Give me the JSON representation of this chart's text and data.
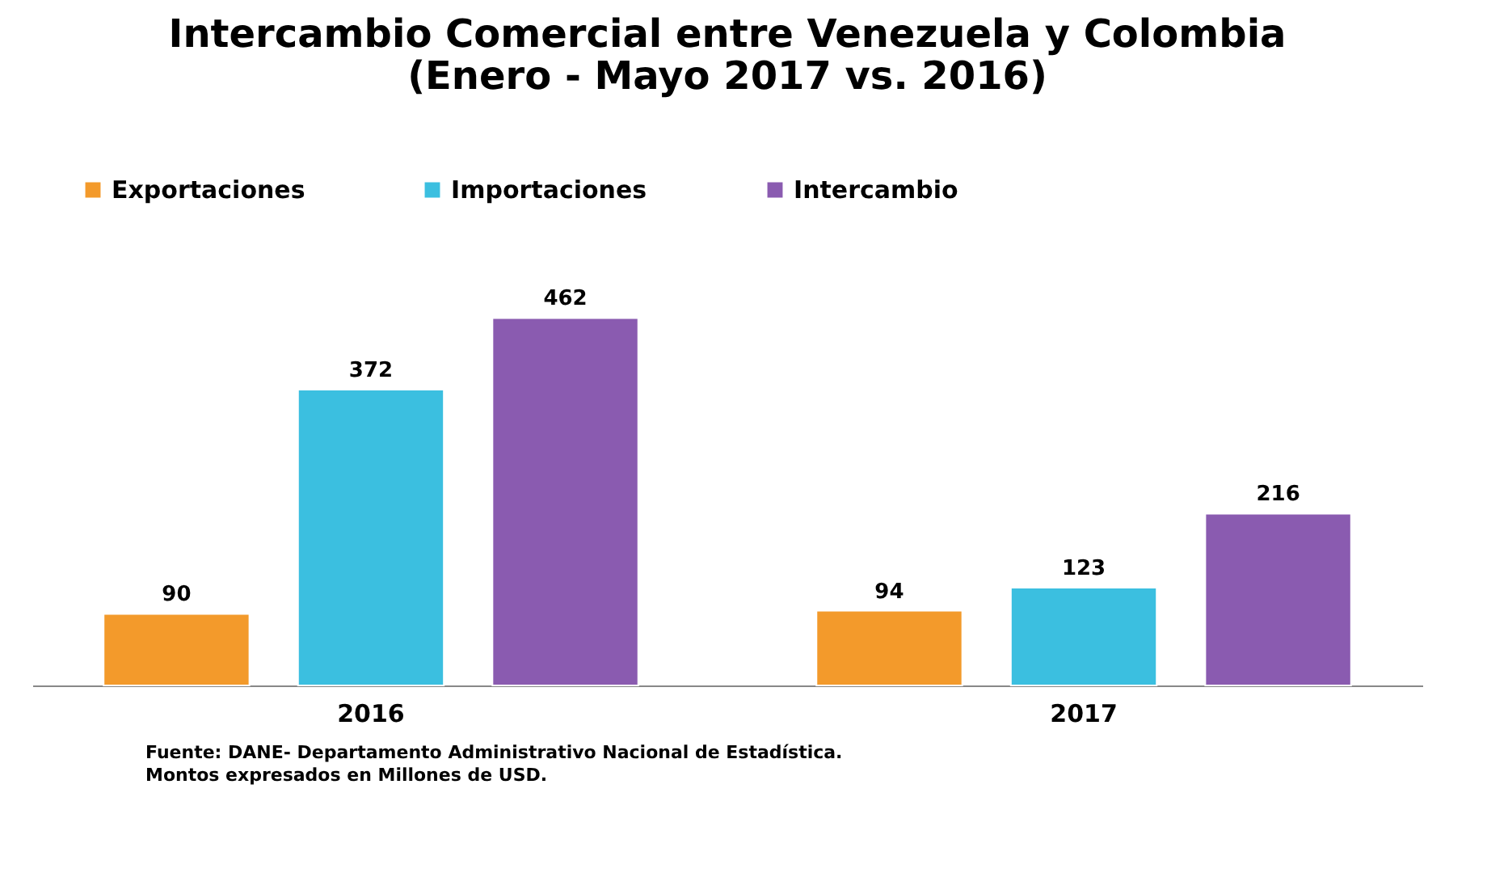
{
  "chart_data": {
    "type": "bar",
    "title": [
      "Intercambio Comercial entre Venezuela y Colombia",
      "(Enero - Mayo 2017 vs. 2016)"
    ],
    "categories": [
      "2016",
      "2017"
    ],
    "series": [
      {
        "name": "Exportaciones",
        "color": "#f39a2b",
        "values": [
          90,
          94
        ]
      },
      {
        "name": "Importaciones",
        "color": "#3bbfe0",
        "values": [
          372,
          123
        ]
      },
      {
        "name": "Intercambio",
        "color": "#8a5bb0",
        "values": [
          462,
          216
        ]
      }
    ],
    "data_labels": true,
    "legend": "top",
    "grid": false,
    "tick_labels": "x",
    "annotations": [
      "Fuente: DANE- Departamento Administrativo Nacional de Estadística.",
      "Montos expresados en Millones de USD."
    ]
  }
}
